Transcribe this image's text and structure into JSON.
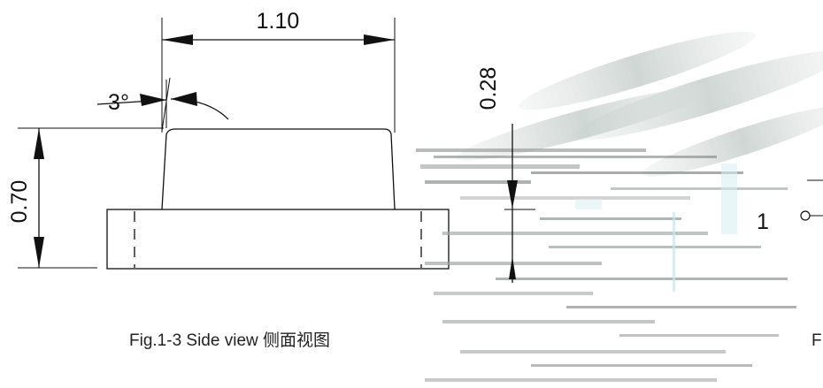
{
  "side_view": {
    "width_dim": "1.10",
    "height_dim": "0.70",
    "angle_dim": "3°",
    "caption": "Fig.1-3 Side view  侧面视图"
  },
  "right_view": {
    "height_dim": "0.28",
    "pin_label": "1",
    "caption_partial": "F"
  }
}
